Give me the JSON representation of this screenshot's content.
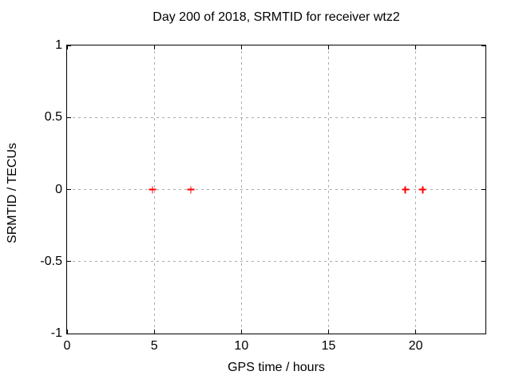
{
  "chart_data": {
    "type": "scatter",
    "title": "Day 200 of 2018, SRMTID for receiver wtz2",
    "xlabel": "GPS time / hours",
    "ylabel": "SRMTID / TECUs",
    "xlim": [
      0,
      24
    ],
    "ylim": [
      -1,
      1
    ],
    "xticks": [
      {
        "value": 0,
        "label": "0"
      },
      {
        "value": 5,
        "label": "5"
      },
      {
        "value": 10,
        "label": "10"
      },
      {
        "value": 15,
        "label": "15"
      },
      {
        "value": 20,
        "label": "20"
      }
    ],
    "yticks": [
      {
        "value": -1,
        "label": "-1"
      },
      {
        "value": -0.5,
        "label": "-0.5"
      },
      {
        "value": 0,
        "label": "0"
      },
      {
        "value": 0.5,
        "label": "0.5"
      },
      {
        "value": 1,
        "label": "1"
      }
    ],
    "grid": true,
    "grid_style": "dashed",
    "legend": "none",
    "series": [
      {
        "name": "SRMTID",
        "marker": "plus",
        "color": "#ff0000",
        "points": [
          {
            "x": 4.9,
            "y": 0
          },
          {
            "x": 7.1,
            "y": 0
          },
          {
            "x": 19.4,
            "y": 0
          },
          {
            "x": 20.4,
            "y": 0
          }
        ]
      }
    ],
    "colors": {
      "background": "#ffffff",
      "border": "#000000",
      "grid": "#ababab",
      "text": "#000000",
      "marker": "#ff0000"
    }
  }
}
